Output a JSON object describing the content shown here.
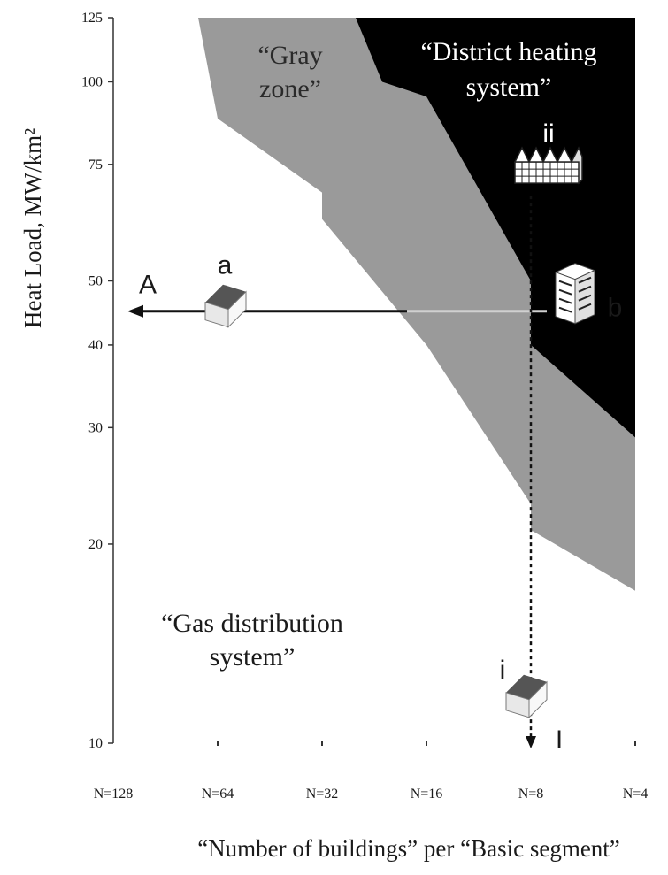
{
  "chart_data": {
    "type": "area",
    "ylabel": "Heat Load, MW/km²",
    "xlabel": "“Number of buildings” per “Basic segment”",
    "y_scale": "log",
    "ylim": [
      10,
      125
    ],
    "y_ticks": [
      10,
      20,
      30,
      40,
      50,
      75,
      100,
      125
    ],
    "categories": [
      "N=128",
      "N=64",
      "N=32",
      "N=16",
      "N=8",
      "N=4"
    ],
    "grid": false,
    "regions": [
      {
        "name": "gray-zone",
        "label": [
          "“Gray",
          "zone”"
        ],
        "color": "#9a9a9a",
        "lower_boundary": [
          {
            "x": "N=64",
            "y": 100
          },
          {
            "x": "N=64",
            "y": 88
          },
          {
            "x": "N=32",
            "y": 68
          },
          {
            "x": "N=32",
            "y": 62
          },
          {
            "x": "N=16",
            "y": 40
          },
          {
            "x": "N=8",
            "y": 23
          },
          {
            "x": "N=8",
            "y": 21
          },
          {
            "x": "N=4",
            "y": 17
          }
        ]
      },
      {
        "name": "district-heating",
        "label": [
          "“District heating",
          "system”"
        ],
        "color": "#000000",
        "lower_boundary": [
          {
            "x": "N=16",
            "y": 100
          },
          {
            "x": "N=16",
            "y": 95
          },
          {
            "x": "N=8",
            "y": 50
          },
          {
            "x": "N=8",
            "y": 40
          },
          {
            "x": "N=4",
            "y": 29
          }
        ]
      },
      {
        "name": "gas-distribution",
        "label": [
          "“Gas distribution",
          "system”"
        ],
        "color": "#ffffff"
      }
    ],
    "annotations": {
      "horizontal_line": {
        "y": 45,
        "from": "N=8",
        "to": "N=128",
        "label": "A"
      },
      "vertical_line": {
        "x": "N=8",
        "from": 72,
        "to": 10,
        "label": "I"
      },
      "markers": [
        {
          "label": "a",
          "icon": "house-icon",
          "x": "N=64",
          "y": 45
        },
        {
          "label": "b",
          "icon": "apartment-building-icon",
          "x": "N=8",
          "y": 45
        },
        {
          "label": "ii",
          "icon": "row-houses-icon",
          "x": "N=8",
          "y": 72
        },
        {
          "label": "i",
          "icon": "house-icon",
          "x": "N=8",
          "y": 12
        }
      ]
    }
  }
}
